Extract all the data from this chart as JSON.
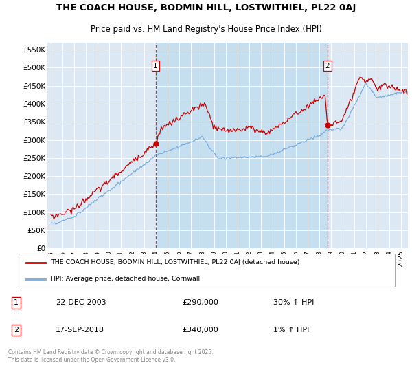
{
  "title": "THE COACH HOUSE, BODMIN HILL, LOSTWITHIEL, PL22 0AJ",
  "subtitle": "Price paid vs. HM Land Registry's House Price Index (HPI)",
  "ylabel_ticks": [
    "£0",
    "£50K",
    "£100K",
    "£150K",
    "£200K",
    "£250K",
    "£300K",
    "£350K",
    "£400K",
    "£450K",
    "£500K",
    "£550K"
  ],
  "ytick_values": [
    0,
    50000,
    100000,
    150000,
    200000,
    250000,
    300000,
    350000,
    400000,
    450000,
    500000,
    550000
  ],
  "ylim": [
    0,
    570000
  ],
  "xlim_start": 1994.7,
  "xlim_end": 2025.6,
  "hpi_color": "#7aaddb",
  "price_color": "#cc0000",
  "purchase1_date": 2003.97,
  "purchase1_price": 290000,
  "purchase2_date": 2018.71,
  "purchase2_price": 340000,
  "purchase1_label": "1",
  "purchase2_label": "2",
  "purchase1_text": "22-DEC-2003",
  "purchase1_amount": "£290,000",
  "purchase1_hpi": "30% ↑ HPI",
  "purchase2_text": "17-SEP-2018",
  "purchase2_amount": "£340,000",
  "purchase2_hpi": "1% ↑ HPI",
  "legend_line1": "THE COACH HOUSE, BODMIN HILL, LOSTWITHIEL, PL22 0AJ (detached house)",
  "legend_line2": "HPI: Average price, detached house, Cornwall",
  "footnote": "Contains HM Land Registry data © Crown copyright and database right 2025.\nThis data is licensed under the Open Government Licence v3.0.",
  "background_color": "#ffffff",
  "plot_bg_color": "#dce9f5",
  "highlight_bg_color": "#c5dff0"
}
